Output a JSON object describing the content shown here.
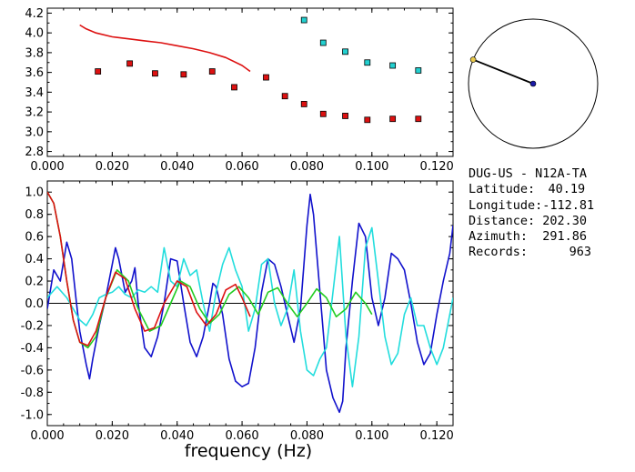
{
  "station": {
    "header": "DUG-US - N12A-TA",
    "latitude_label": "Latitude:",
    "latitude": "40.19",
    "longitude_label": "Longitude:",
    "longitude": "-112.81",
    "distance_label": "Distance:",
    "distance": "202.30",
    "azimuth_label": "Azimuth:",
    "azimuth": "291.86",
    "records_label": "Records:",
    "records": "963"
  },
  "azimuth_plot": {
    "azimuth_deg": 291.86,
    "colors": {
      "circle": "#000000",
      "line": "#000000",
      "center": "#1a1aa6",
      "end": "#e8c84a"
    }
  },
  "chart_data": [
    {
      "type": "scatter",
      "panel": "top",
      "xlim": [
        0.0,
        0.125
      ],
      "ylim": [
        2.75,
        4.25
      ],
      "xticks": [
        "0.000",
        "0.020",
        "0.040",
        "0.060",
        "0.080",
        "0.100",
        "0.120"
      ],
      "yticks": [
        "2.8",
        "3.0",
        "3.2",
        "3.4",
        "3.6",
        "3.8",
        "4.0",
        "4.2"
      ],
      "series": [
        {
          "kind": "markers",
          "color": "#dd1111",
          "x": [
            0.0156,
            0.0254,
            0.0332,
            0.042,
            0.0508,
            0.0576,
            0.0674,
            0.0732,
            0.0791,
            0.085,
            0.0918,
            0.0986,
            0.1064,
            0.1143
          ],
          "y": [
            3.61,
            3.69,
            3.59,
            3.58,
            3.61,
            3.45,
            3.55,
            3.36,
            3.28,
            3.18,
            3.16,
            3.12,
            3.13,
            3.13
          ]
        },
        {
          "kind": "markers",
          "color": "#22d0d0",
          "x": [
            0.0791,
            0.085,
            0.0918,
            0.0986,
            0.1064,
            0.1143
          ],
          "y": [
            4.13,
            3.9,
            3.81,
            3.7,
            3.67,
            3.62
          ]
        },
        {
          "kind": "line",
          "color": "#dd1111",
          "x": [
            0.01,
            0.012,
            0.015,
            0.02,
            0.025,
            0.03,
            0.035,
            0.04,
            0.045,
            0.05,
            0.055,
            0.06,
            0.0625
          ],
          "y": [
            4.08,
            4.04,
            4.0,
            3.96,
            3.94,
            3.92,
            3.9,
            3.87,
            3.84,
            3.8,
            3.75,
            3.67,
            3.61
          ]
        }
      ]
    },
    {
      "type": "line",
      "panel": "bottom",
      "xlabel": "frequency (Hz)",
      "xlim": [
        0.0,
        0.125
      ],
      "ylim": [
        -1.1,
        1.1
      ],
      "xticks": [
        "0.000",
        "0.020",
        "0.040",
        "0.060",
        "0.080",
        "0.100",
        "0.120"
      ],
      "yticks": [
        "-1.0",
        "-0.8",
        "-0.6",
        "-0.4",
        "-0.2",
        "0.0",
        "0.2",
        "0.4",
        "0.6",
        "0.8",
        "1.0"
      ],
      "zero_line": true,
      "series": [
        {
          "color": "#1111cc",
          "x": [
            0.0,
            0.002,
            0.004,
            0.006,
            0.0075,
            0.009,
            0.01,
            0.012,
            0.013,
            0.014,
            0.016,
            0.018,
            0.02,
            0.021,
            0.022,
            0.024,
            0.026,
            0.027,
            0.028,
            0.03,
            0.032,
            0.034,
            0.036,
            0.038,
            0.04,
            0.042,
            0.044,
            0.046,
            0.048,
            0.05,
            0.051,
            0.052,
            0.054,
            0.056,
            0.058,
            0.06,
            0.062,
            0.064,
            0.066,
            0.068,
            0.07,
            0.072,
            0.074,
            0.076,
            0.078,
            0.08,
            0.081,
            0.082,
            0.084,
            0.086,
            0.088,
            0.09,
            0.091,
            0.092,
            0.094,
            0.096,
            0.098,
            0.1,
            0.102,
            0.104,
            0.106,
            0.108,
            0.11,
            0.112,
            0.114,
            0.116,
            0.118,
            0.12,
            0.122,
            0.124,
            0.125
          ],
          "y": [
            -0.05,
            0.3,
            0.2,
            0.55,
            0.4,
            0.0,
            -0.25,
            -0.55,
            -0.68,
            -0.5,
            -0.2,
            0.05,
            0.35,
            0.5,
            0.4,
            0.1,
            0.2,
            0.32,
            0.0,
            -0.4,
            -0.48,
            -0.3,
            0.0,
            0.4,
            0.38,
            0.0,
            -0.35,
            -0.48,
            -0.3,
            0.0,
            0.18,
            0.15,
            -0.1,
            -0.5,
            -0.7,
            -0.75,
            -0.72,
            -0.4,
            0.1,
            0.4,
            0.35,
            0.15,
            -0.1,
            -0.35,
            -0.05,
            0.7,
            0.98,
            0.8,
            0.1,
            -0.6,
            -0.85,
            -0.98,
            -0.88,
            -0.4,
            0.2,
            0.72,
            0.6,
            0.05,
            -0.2,
            0.05,
            0.45,
            0.4,
            0.3,
            0.0,
            -0.35,
            -0.55,
            -0.45,
            -0.1,
            0.2,
            0.45,
            0.7
          ]
        },
        {
          "color": "#22dddd",
          "x": [
            0.0,
            0.003,
            0.006,
            0.008,
            0.01,
            0.012,
            0.014,
            0.016,
            0.018,
            0.02,
            0.022,
            0.024,
            0.026,
            0.028,
            0.03,
            0.032,
            0.034,
            0.036,
            0.038,
            0.04,
            0.042,
            0.044,
            0.046,
            0.048,
            0.05,
            0.052,
            0.054,
            0.056,
            0.058,
            0.06,
            0.062,
            0.064,
            0.066,
            0.068,
            0.07,
            0.072,
            0.074,
            0.076,
            0.078,
            0.08,
            0.082,
            0.084,
            0.086,
            0.088,
            0.09,
            0.092,
            0.094,
            0.096,
            0.098,
            0.1,
            0.102,
            0.104,
            0.106,
            0.108,
            0.11,
            0.112,
            0.114,
            0.116,
            0.118,
            0.12,
            0.122,
            0.124,
            0.125
          ],
          "y": [
            0.05,
            0.15,
            0.05,
            -0.05,
            -0.15,
            -0.2,
            -0.1,
            0.05,
            0.08,
            0.1,
            0.15,
            0.08,
            0.05,
            0.12,
            0.1,
            0.15,
            0.1,
            0.5,
            0.2,
            0.15,
            0.4,
            0.25,
            0.3,
            0.0,
            -0.25,
            0.1,
            0.35,
            0.5,
            0.3,
            0.15,
            -0.25,
            -0.05,
            0.35,
            0.4,
            0.0,
            -0.2,
            -0.05,
            0.3,
            -0.25,
            -0.6,
            -0.65,
            -0.5,
            -0.4,
            0.1,
            0.6,
            -0.3,
            -0.75,
            -0.3,
            0.5,
            0.68,
            0.2,
            -0.3,
            -0.55,
            -0.45,
            -0.1,
            0.05,
            -0.2,
            -0.2,
            -0.4,
            -0.55,
            -0.4,
            -0.1,
            0.05
          ]
        },
        {
          "color": "#22cc22",
          "x": [
            0.0,
            0.002,
            0.004,
            0.006,
            0.008,
            0.01,
            0.0125,
            0.015,
            0.018,
            0.0215,
            0.025,
            0.028,
            0.0315,
            0.035,
            0.038,
            0.041,
            0.044,
            0.047,
            0.05,
            0.053,
            0.056,
            0.059,
            0.062,
            0.065,
            0.068,
            0.071,
            0.074,
            0.077,
            0.08,
            0.083,
            0.086,
            0.089,
            0.092,
            0.095,
            0.098,
            0.1
          ],
          "y": [
            1.0,
            0.9,
            0.6,
            0.2,
            -0.15,
            -0.35,
            -0.4,
            -0.3,
            0.05,
            0.3,
            0.2,
            -0.05,
            -0.25,
            -0.2,
            0.0,
            0.2,
            0.15,
            -0.05,
            -0.18,
            -0.1,
            0.08,
            0.15,
            0.05,
            -0.1,
            0.1,
            0.14,
            0.0,
            -0.12,
            0.0,
            0.13,
            0.05,
            -0.12,
            -0.05,
            0.1,
            0.0,
            -0.1
          ]
        },
        {
          "color": "#dd1111",
          "x": [
            0.0,
            0.002,
            0.004,
            0.006,
            0.008,
            0.01,
            0.0125,
            0.015,
            0.018,
            0.021,
            0.024,
            0.027,
            0.03,
            0.033,
            0.036,
            0.04,
            0.043,
            0.046,
            0.049,
            0.052,
            0.055,
            0.058,
            0.06,
            0.0625
          ],
          "y": [
            1.0,
            0.9,
            0.6,
            0.2,
            -0.15,
            -0.35,
            -0.38,
            -0.25,
            0.05,
            0.28,
            0.22,
            -0.05,
            -0.25,
            -0.22,
            0.0,
            0.2,
            0.15,
            -0.08,
            -0.2,
            -0.1,
            0.12,
            0.17,
            0.05,
            -0.12
          ]
        }
      ]
    }
  ]
}
